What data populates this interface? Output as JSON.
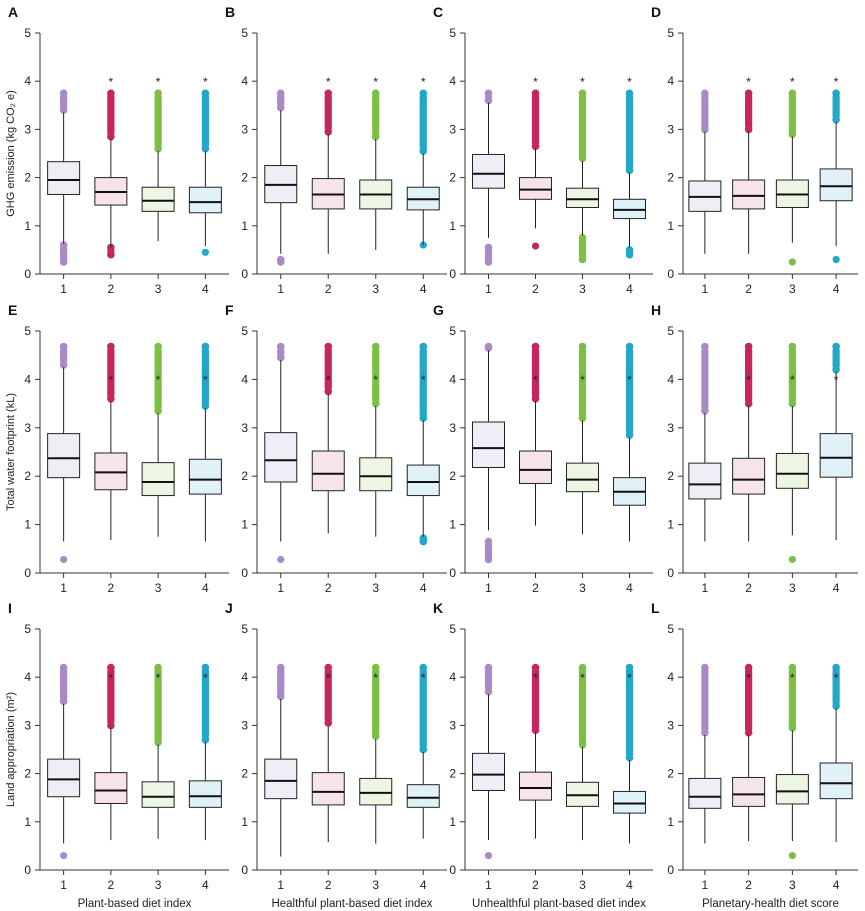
{
  "colors": {
    "q1": {
      "box": "#efedf6",
      "dot": "#a98ac6"
    },
    "q2": {
      "box": "#f7e3ea",
      "dot": "#c8245e"
    },
    "q3": {
      "box": "#edf5e3",
      "dot": "#7bc043"
    },
    "q4": {
      "box": "#e0f1f8",
      "dot": "#22a7c9"
    }
  },
  "columns": [
    {
      "xlabel": "Plant-based diet index"
    },
    {
      "xlabel": "Healthful plant-based diet index"
    },
    {
      "xlabel": "Unhealthful plant-based diet index"
    },
    {
      "xlabel": "Planetary-health diet score"
    }
  ],
  "rows": [
    {
      "ylabel": "GHG emission (kg CO₂ e)",
      "ylim": [
        0,
        5
      ],
      "yticks": [
        "0",
        "1",
        "2",
        "3",
        "4",
        "5"
      ]
    },
    {
      "ylabel": "Total water footprint (kL)",
      "ylim": [
        0,
        5
      ],
      "yticks": [
        "0",
        "1",
        "2",
        "3",
        "4",
        "5"
      ]
    },
    {
      "ylabel": "Land appropriation (m²)",
      "ylim": [
        0,
        5
      ],
      "yticks": [
        "0",
        "1",
        "2",
        "3",
        "4",
        "5"
      ]
    }
  ],
  "chart_data": [
    {
      "panel": "A",
      "type": "box",
      "categories": [
        "1",
        "2",
        "3",
        "4"
      ],
      "stars": [
        "",
        "*",
        "*",
        "*"
      ],
      "boxes": [
        {
          "q1": 1.65,
          "med": 1.95,
          "q3": 2.33,
          "wlo": 0.63,
          "whi": 3.35,
          "out_hi": [
            3.4,
            3.75
          ],
          "out_lo": [
            0.25,
            0.6
          ]
        },
        {
          "q1": 1.43,
          "med": 1.7,
          "q3": 2.0,
          "wlo": 0.55,
          "whi": 2.8,
          "out_hi": [
            2.85,
            3.75
          ],
          "out_lo": [
            0.4,
            0.55
          ]
        },
        {
          "q1": 1.3,
          "med": 1.52,
          "q3": 1.8,
          "wlo": 0.68,
          "whi": 2.55,
          "out_hi": [
            2.6,
            3.75
          ],
          "out_lo": []
        },
        {
          "q1": 1.27,
          "med": 1.49,
          "q3": 1.8,
          "wlo": 0.58,
          "whi": 2.55,
          "out_hi": [
            2.6,
            3.75
          ],
          "out_lo": [
            0.45,
            0.45
          ]
        }
      ]
    },
    {
      "panel": "B",
      "type": "box",
      "categories": [
        "1",
        "2",
        "3",
        "4"
      ],
      "stars": [
        "",
        "*",
        "*",
        "*"
      ],
      "boxes": [
        {
          "q1": 1.48,
          "med": 1.85,
          "q3": 2.25,
          "wlo": 0.42,
          "whi": 3.4,
          "out_hi": [
            3.45,
            3.75
          ],
          "out_lo": [
            0.25,
            0.3
          ]
        },
        {
          "q1": 1.35,
          "med": 1.65,
          "q3": 1.98,
          "wlo": 0.42,
          "whi": 2.9,
          "out_hi": [
            2.95,
            3.75
          ],
          "out_lo": []
        },
        {
          "q1": 1.35,
          "med": 1.65,
          "q3": 1.95,
          "wlo": 0.5,
          "whi": 2.8,
          "out_hi": [
            2.85,
            3.75
          ],
          "out_lo": []
        },
        {
          "q1": 1.33,
          "med": 1.55,
          "q3": 1.8,
          "wlo": 0.6,
          "whi": 2.5,
          "out_hi": [
            2.55,
            3.75
          ],
          "out_lo": [
            0.58,
            0.6
          ]
        }
      ]
    },
    {
      "panel": "C",
      "type": "box",
      "categories": [
        "1",
        "2",
        "3",
        "4"
      ],
      "stars": [
        "",
        "*",
        "*",
        "*"
      ],
      "boxes": [
        {
          "q1": 1.78,
          "med": 2.08,
          "q3": 2.48,
          "wlo": 0.75,
          "whi": 3.55,
          "out_hi": [
            3.6,
            3.75
          ],
          "out_lo": [
            0.25,
            0.55
          ]
        },
        {
          "q1": 1.55,
          "med": 1.75,
          "q3": 2.0,
          "wlo": 0.95,
          "whi": 2.6,
          "out_hi": [
            2.65,
            3.75
          ],
          "out_lo": [
            0.58,
            0.58
          ]
        },
        {
          "q1": 1.38,
          "med": 1.55,
          "q3": 1.78,
          "wlo": 0.8,
          "whi": 2.35,
          "out_hi": [
            2.4,
            3.75
          ],
          "out_lo": [
            0.3,
            0.75
          ]
        },
        {
          "q1": 1.15,
          "med": 1.33,
          "q3": 1.55,
          "wlo": 0.55,
          "whi": 2.1,
          "out_hi": [
            2.15,
            3.75
          ],
          "out_lo": [
            0.4,
            0.5
          ]
        }
      ]
    },
    {
      "panel": "D",
      "type": "box",
      "categories": [
        "1",
        "2",
        "3",
        "4"
      ],
      "stars": [
        "",
        "*",
        "*",
        "*"
      ],
      "boxes": [
        {
          "q1": 1.3,
          "med": 1.6,
          "q3": 1.93,
          "wlo": 0.42,
          "whi": 2.95,
          "out_hi": [
            3.0,
            3.75
          ],
          "out_lo": []
        },
        {
          "q1": 1.35,
          "med": 1.62,
          "q3": 1.95,
          "wlo": 0.42,
          "whi": 2.95,
          "out_hi": [
            3.0,
            3.75
          ],
          "out_lo": []
        },
        {
          "q1": 1.38,
          "med": 1.65,
          "q3": 1.95,
          "wlo": 0.65,
          "whi": 2.85,
          "out_hi": [
            2.9,
            3.75
          ],
          "out_lo": [
            0.25,
            0.25
          ]
        },
        {
          "q1": 1.52,
          "med": 1.82,
          "q3": 2.18,
          "wlo": 0.58,
          "whi": 3.15,
          "out_hi": [
            3.2,
            3.75
          ],
          "out_lo": [
            0.3,
            0.3
          ]
        }
      ]
    },
    {
      "panel": "E",
      "type": "box",
      "categories": [
        "1",
        "2",
        "3",
        "4"
      ],
      "stars": [
        "",
        "*",
        "*",
        "*"
      ],
      "boxes": [
        {
          "q1": 1.97,
          "med": 2.37,
          "q3": 2.88,
          "wlo": 0.65,
          "whi": 4.25,
          "out_hi": [
            4.3,
            4.68
          ],
          "out_lo": [
            0.28,
            0.28
          ]
        },
        {
          "q1": 1.72,
          "med": 2.08,
          "q3": 2.48,
          "wlo": 0.68,
          "whi": 3.55,
          "out_hi": [
            3.6,
            4.68
          ],
          "out_lo": []
        },
        {
          "q1": 1.6,
          "med": 1.88,
          "q3": 2.28,
          "wlo": 0.75,
          "whi": 3.3,
          "out_hi": [
            3.35,
            4.68
          ],
          "out_lo": []
        },
        {
          "q1": 1.63,
          "med": 1.93,
          "q3": 2.35,
          "wlo": 0.65,
          "whi": 3.4,
          "out_hi": [
            3.45,
            4.68
          ],
          "out_lo": []
        }
      ]
    },
    {
      "panel": "F",
      "type": "box",
      "categories": [
        "1",
        "2",
        "3",
        "4"
      ],
      "stars": [
        "",
        "*",
        "*",
        "*"
      ],
      "boxes": [
        {
          "q1": 1.88,
          "med": 2.33,
          "q3": 2.9,
          "wlo": 0.65,
          "whi": 4.4,
          "out_hi": [
            4.45,
            4.68
          ],
          "out_lo": [
            0.28,
            0.28
          ]
        },
        {
          "q1": 1.7,
          "med": 2.05,
          "q3": 2.52,
          "wlo": 0.82,
          "whi": 3.7,
          "out_hi": [
            3.75,
            4.68
          ],
          "out_lo": []
        },
        {
          "q1": 1.7,
          "med": 2.0,
          "q3": 2.38,
          "wlo": 0.75,
          "whi": 3.45,
          "out_hi": [
            3.5,
            4.68
          ],
          "out_lo": []
        },
        {
          "q1": 1.6,
          "med": 1.88,
          "q3": 2.23,
          "wlo": 0.75,
          "whi": 3.15,
          "out_hi": [
            3.2,
            4.68
          ],
          "out_lo": [
            0.65,
            0.72
          ]
        }
      ]
    },
    {
      "panel": "G",
      "type": "box",
      "categories": [
        "1",
        "2",
        "3",
        "4"
      ],
      "stars": [
        "",
        "*",
        "*",
        "*"
      ],
      "boxes": [
        {
          "q1": 2.18,
          "med": 2.58,
          "q3": 3.12,
          "wlo": 0.88,
          "whi": 4.6,
          "out_hi": [
            4.65,
            4.68
          ],
          "out_lo": [
            0.28,
            0.65
          ]
        },
        {
          "q1": 1.85,
          "med": 2.13,
          "q3": 2.52,
          "wlo": 0.98,
          "whi": 3.55,
          "out_hi": [
            3.6,
            4.68
          ],
          "out_lo": []
        },
        {
          "q1": 1.68,
          "med": 1.93,
          "q3": 2.27,
          "wlo": 0.8,
          "whi": 3.15,
          "out_hi": [
            3.2,
            4.68
          ],
          "out_lo": []
        },
        {
          "q1": 1.4,
          "med": 1.68,
          "q3": 1.97,
          "wlo": 0.65,
          "whi": 2.8,
          "out_hi": [
            2.85,
            4.68
          ],
          "out_lo": []
        }
      ]
    },
    {
      "panel": "H",
      "type": "box",
      "categories": [
        "1",
        "2",
        "3",
        "4"
      ],
      "stars": [
        "",
        "*",
        "*",
        "*"
      ],
      "boxes": [
        {
          "q1": 1.53,
          "med": 1.83,
          "q3": 2.27,
          "wlo": 0.65,
          "whi": 3.3,
          "out_hi": [
            3.35,
            4.68
          ],
          "out_lo": []
        },
        {
          "q1": 1.63,
          "med": 1.93,
          "q3": 2.37,
          "wlo": 0.65,
          "whi": 3.45,
          "out_hi": [
            3.5,
            4.68
          ],
          "out_lo": []
        },
        {
          "q1": 1.75,
          "med": 2.05,
          "q3": 2.47,
          "wlo": 0.78,
          "whi": 3.45,
          "out_hi": [
            3.5,
            4.68
          ],
          "out_lo": [
            0.28,
            0.28
          ]
        },
        {
          "q1": 1.98,
          "med": 2.38,
          "q3": 2.88,
          "wlo": 0.68,
          "whi": 4.15,
          "out_hi": [
            4.2,
            4.68
          ],
          "out_lo": []
        }
      ]
    },
    {
      "panel": "I",
      "type": "box",
      "categories": [
        "1",
        "2",
        "3",
        "4"
      ],
      "stars": [
        "",
        "*",
        "*",
        "*"
      ],
      "boxes": [
        {
          "q1": 1.52,
          "med": 1.88,
          "q3": 2.3,
          "wlo": 0.55,
          "whi": 3.45,
          "out_hi": [
            3.5,
            4.2
          ],
          "out_lo": [
            0.3,
            0.3
          ]
        },
        {
          "q1": 1.38,
          "med": 1.65,
          "q3": 2.02,
          "wlo": 0.62,
          "whi": 2.95,
          "out_hi": [
            3.0,
            4.2
          ],
          "out_lo": []
        },
        {
          "q1": 1.3,
          "med": 1.52,
          "q3": 1.83,
          "wlo": 0.65,
          "whi": 2.6,
          "out_hi": [
            2.65,
            4.2
          ],
          "out_lo": []
        },
        {
          "q1": 1.3,
          "med": 1.53,
          "q3": 1.85,
          "wlo": 0.62,
          "whi": 2.65,
          "out_hi": [
            2.7,
            4.2
          ],
          "out_lo": []
        }
      ]
    },
    {
      "panel": "J",
      "type": "box",
      "categories": [
        "1",
        "2",
        "3",
        "4"
      ],
      "stars": [
        "",
        "*",
        "*",
        "*"
      ],
      "boxes": [
        {
          "q1": 1.48,
          "med": 1.85,
          "q3": 2.3,
          "wlo": 0.28,
          "whi": 3.55,
          "out_hi": [
            3.6,
            4.2
          ],
          "out_lo": []
        },
        {
          "q1": 1.35,
          "med": 1.62,
          "q3": 2.02,
          "wlo": 0.58,
          "whi": 2.98,
          "out_hi": [
            3.05,
            4.2
          ],
          "out_lo": []
        },
        {
          "q1": 1.35,
          "med": 1.6,
          "q3": 1.9,
          "wlo": 0.55,
          "whi": 2.72,
          "out_hi": [
            2.78,
            4.2
          ],
          "out_lo": []
        },
        {
          "q1": 1.3,
          "med": 1.5,
          "q3": 1.77,
          "wlo": 0.65,
          "whi": 2.45,
          "out_hi": [
            2.5,
            4.2
          ],
          "out_lo": []
        }
      ]
    },
    {
      "panel": "K",
      "type": "box",
      "categories": [
        "1",
        "2",
        "3",
        "4"
      ],
      "stars": [
        "",
        "*",
        "*",
        "*"
      ],
      "boxes": [
        {
          "q1": 1.65,
          "med": 1.98,
          "q3": 2.42,
          "wlo": 0.62,
          "whi": 3.65,
          "out_hi": [
            3.7,
            4.2
          ],
          "out_lo": [
            0.3,
            0.3
          ]
        },
        {
          "q1": 1.45,
          "med": 1.7,
          "q3": 2.03,
          "wlo": 0.65,
          "whi": 2.85,
          "out_hi": [
            2.9,
            4.2
          ],
          "out_lo": []
        },
        {
          "q1": 1.32,
          "med": 1.55,
          "q3": 1.82,
          "wlo": 0.62,
          "whi": 2.55,
          "out_hi": [
            2.6,
            4.2
          ],
          "out_lo": []
        },
        {
          "q1": 1.18,
          "med": 1.38,
          "q3": 1.63,
          "wlo": 0.55,
          "whi": 2.28,
          "out_hi": [
            2.33,
            4.2
          ],
          "out_lo": []
        }
      ]
    },
    {
      "panel": "L",
      "type": "box",
      "categories": [
        "1",
        "2",
        "3",
        "4"
      ],
      "stars": [
        "",
        "*",
        "*",
        "*"
      ],
      "boxes": [
        {
          "q1": 1.28,
          "med": 1.52,
          "q3": 1.9,
          "wlo": 0.55,
          "whi": 2.8,
          "out_hi": [
            2.85,
            4.2
          ],
          "out_lo": []
        },
        {
          "q1": 1.32,
          "med": 1.57,
          "q3": 1.92,
          "wlo": 0.6,
          "whi": 2.8,
          "out_hi": [
            2.85,
            4.2
          ],
          "out_lo": []
        },
        {
          "q1": 1.37,
          "med": 1.63,
          "q3": 1.98,
          "wlo": 0.6,
          "whi": 2.9,
          "out_hi": [
            2.95,
            4.2
          ],
          "out_lo": [
            0.3,
            0.3
          ]
        },
        {
          "q1": 1.48,
          "med": 1.8,
          "q3": 2.22,
          "wlo": 0.58,
          "whi": 3.35,
          "out_hi": [
            3.4,
            4.2
          ],
          "out_lo": []
        }
      ]
    }
  ]
}
